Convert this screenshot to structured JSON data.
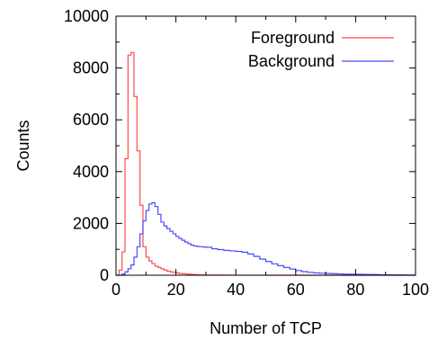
{
  "chart_data": {
    "type": "line",
    "title": "",
    "xlabel": "Number of TCP",
    "ylabel": "Counts",
    "xlim": [
      0,
      100
    ],
    "ylim": [
      0,
      10000
    ],
    "x_ticks": [
      "0",
      "20",
      "40",
      "60",
      "80",
      "100"
    ],
    "y_ticks": [
      "0",
      "2000",
      "4000",
      "6000",
      "8000",
      "10000"
    ],
    "grid": false,
    "legend_position": "top-right",
    "step": true,
    "series": [
      {
        "name": "Foreground",
        "color": "#ff4a4a",
        "x": [
          0,
          1,
          2,
          3,
          4,
          5,
          6,
          7,
          8,
          9,
          10,
          11,
          12,
          13,
          14,
          15,
          16,
          17,
          18,
          19,
          20,
          21,
          22,
          23,
          24,
          25,
          26,
          27,
          28,
          29,
          30,
          35,
          40,
          50,
          60,
          100
        ],
        "y": [
          0,
          200,
          900,
          4500,
          8500,
          8600,
          6900,
          4800,
          2700,
          1100,
          700,
          550,
          450,
          350,
          300,
          250,
          200,
          160,
          130,
          110,
          90,
          70,
          60,
          50,
          40,
          30,
          25,
          20,
          15,
          10,
          8,
          5,
          3,
          1,
          0,
          0
        ]
      },
      {
        "name": "Background",
        "color": "#4a4aff",
        "x": [
          0,
          1,
          2,
          3,
          4,
          5,
          6,
          7,
          8,
          9,
          10,
          11,
          12,
          13,
          14,
          15,
          16,
          17,
          18,
          19,
          20,
          21,
          22,
          23,
          24,
          25,
          26,
          27,
          28,
          29,
          30,
          32,
          34,
          36,
          38,
          40,
          42,
          44,
          46,
          48,
          50,
          52,
          54,
          56,
          58,
          60,
          62,
          64,
          66,
          68,
          70,
          72,
          74,
          76,
          78,
          80,
          82,
          84,
          86,
          88,
          90,
          92,
          94,
          96,
          98,
          100
        ],
        "y": [
          0,
          0,
          40,
          130,
          250,
          400,
          700,
          1100,
          1600,
          2100,
          2500,
          2750,
          2800,
          2650,
          2350,
          2050,
          1900,
          1800,
          1700,
          1600,
          1500,
          1420,
          1350,
          1280,
          1220,
          1160,
          1130,
          1110,
          1100,
          1090,
          1080,
          1020,
          990,
          960,
          940,
          920,
          890,
          820,
          730,
          620,
          530,
          440,
          370,
          300,
          240,
          180,
          140,
          110,
          90,
          80,
          70,
          60,
          50,
          40,
          40,
          35,
          30,
          30,
          25,
          20,
          20,
          15,
          15,
          10,
          10,
          10
        ]
      }
    ]
  }
}
